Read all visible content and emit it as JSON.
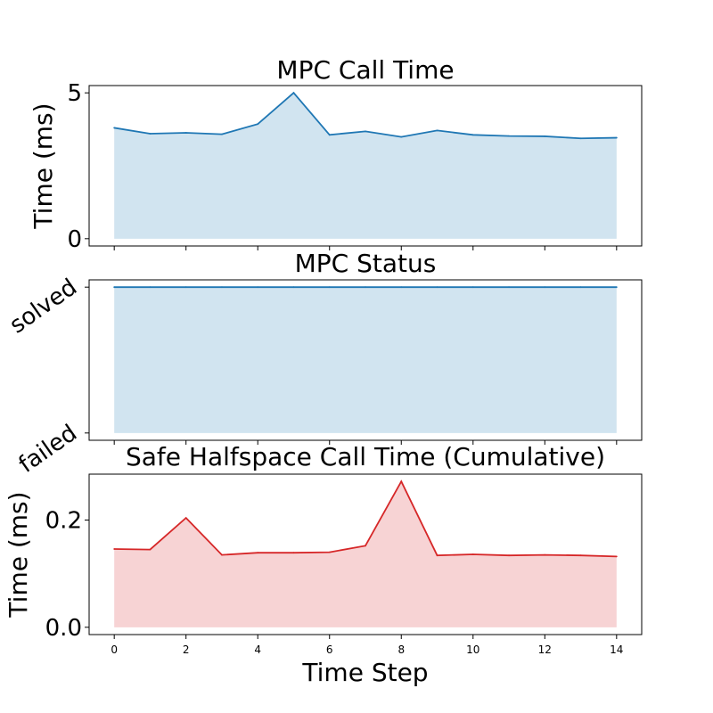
{
  "chart_data": [
    {
      "type": "area",
      "title": "MPC Call Time",
      "xlabel": "",
      "ylabel": "Time (ms)",
      "x": [
        0,
        1,
        2,
        3,
        4,
        5,
        6,
        7,
        8,
        9,
        10,
        11,
        12,
        13,
        14
      ],
      "series": [
        {
          "values": [
            3.8,
            3.6,
            3.63,
            3.58,
            3.93,
            5.0,
            3.56,
            3.68,
            3.49,
            3.71,
            3.56,
            3.52,
            3.51,
            3.44,
            3.46
          ],
          "color": "#1f77b4",
          "fill": "#d1e4f0"
        }
      ],
      "yticks": [
        0,
        5
      ],
      "ytick_labels": [
        "0",
        "5"
      ],
      "xticks": [
        0,
        2,
        4,
        6,
        8,
        10,
        12,
        14
      ],
      "xlim": [
        -0.7,
        14.7
      ],
      "ylim": [
        -0.25,
        5.25
      ],
      "grid": false
    },
    {
      "type": "area",
      "title": "MPC Status",
      "xlabel": "",
      "ylabel": "",
      "x": [
        0,
        1,
        2,
        3,
        4,
        5,
        6,
        7,
        8,
        9,
        10,
        11,
        12,
        13,
        14
      ],
      "series": [
        {
          "values": [
            1,
            1,
            1,
            1,
            1,
            1,
            1,
            1,
            1,
            1,
            1,
            1,
            1,
            1,
            1
          ],
          "color": "#1f77b4",
          "fill": "#d1e4f0"
        }
      ],
      "yticks": [
        0,
        1
      ],
      "ytick_labels": [
        "failed",
        "solved"
      ],
      "xticks": [
        0,
        2,
        4,
        6,
        8,
        10,
        12,
        14
      ],
      "xlim": [
        -0.7,
        14.7
      ],
      "ylim": [
        -0.05,
        1.05
      ],
      "grid": false
    },
    {
      "type": "area",
      "title": "Safe Halfspace Call Time (Cumulative)",
      "xlabel": "Time Step",
      "ylabel": "Time (ms)",
      "x": [
        0,
        1,
        2,
        3,
        4,
        5,
        6,
        7,
        8,
        9,
        10,
        11,
        12,
        13,
        14
      ],
      "series": [
        {
          "values": [
            0.146,
            0.145,
            0.204,
            0.135,
            0.139,
            0.139,
            0.14,
            0.152,
            0.272,
            0.134,
            0.136,
            0.134,
            0.135,
            0.134,
            0.132
          ],
          "color": "#d62728",
          "fill": "#f7d3d4"
        }
      ],
      "yticks": [
        0.0,
        0.2
      ],
      "ytick_labels": [
        "0.0",
        "0.2"
      ],
      "xticks": [
        0,
        2,
        4,
        6,
        8,
        10,
        12,
        14
      ],
      "xtick_labels": [
        "0",
        "2",
        "4",
        "6",
        "8",
        "10",
        "12",
        "14"
      ],
      "xlim": [
        -0.7,
        14.7
      ],
      "ylim": [
        -0.0136,
        0.2856
      ],
      "grid": false
    }
  ]
}
